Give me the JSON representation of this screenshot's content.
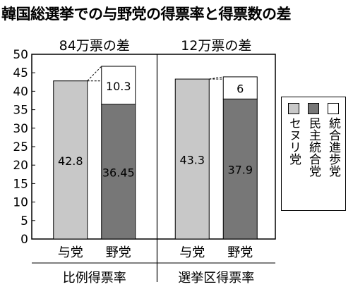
{
  "title": "韓国総選挙での与野党の得票率と得票数の差",
  "colors": {
    "ruling": "#c8c8c8",
    "opposition_main": "#777777",
    "opposition_other": "#ffffff",
    "stroke": "#000000"
  },
  "chart_data": {
    "type": "bar",
    "stacked": true,
    "ylim": [
      0,
      50
    ],
    "yticks": [
      0,
      5,
      10,
      15,
      20,
      25,
      30,
      35,
      40,
      45,
      50
    ],
    "groups": [
      {
        "label": "比例得票率",
        "diff_note": "84万票の差",
        "bars": [
          {
            "category": "与党",
            "segments": [
              {
                "series": "セヌリ党",
                "value": 42.8,
                "label": "42.8"
              }
            ]
          },
          {
            "category": "野党",
            "segments": [
              {
                "series": "民主統合党",
                "value": 36.45,
                "label": "36.45"
              },
              {
                "series": "統合進歩党",
                "value": 10.3,
                "label": "10.3"
              }
            ]
          }
        ]
      },
      {
        "label": "選挙区得票率",
        "diff_note": "12万票の差",
        "bars": [
          {
            "category": "与党",
            "segments": [
              {
                "series": "セヌリ党",
                "value": 43.3,
                "label": "43.3"
              }
            ]
          },
          {
            "category": "野党",
            "segments": [
              {
                "series": "民主統合党",
                "value": 37.9,
                "label": "37.9"
              },
              {
                "series": "統合進歩党",
                "value": 6,
                "label": "6"
              }
            ]
          }
        ]
      }
    ],
    "legend": [
      {
        "name": "セヌリ党",
        "color": "#c8c8c8"
      },
      {
        "name": "民主統合党",
        "color": "#777777"
      },
      {
        "name": "統合進歩党",
        "color": "#ffffff"
      }
    ],
    "legend_position": "right"
  }
}
